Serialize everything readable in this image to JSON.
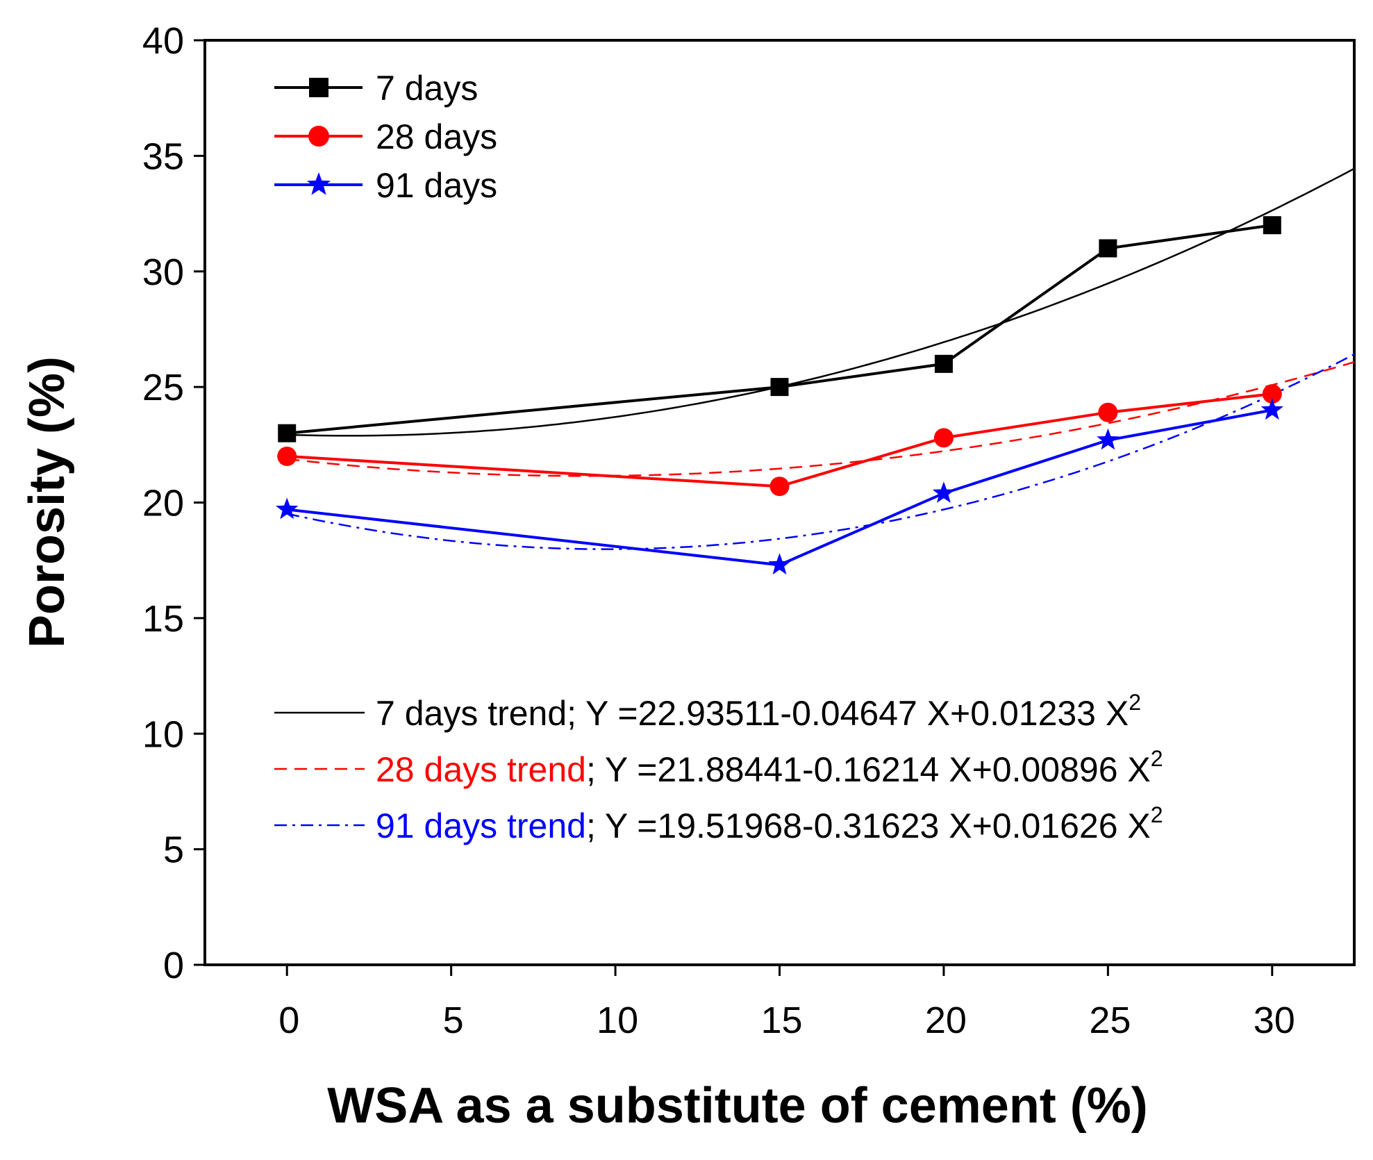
{
  "chart_data": {
    "type": "line",
    "title": "",
    "xlabel": "WSA as a substitute of cement  (%)",
    "ylabel": "Porosity (%)",
    "xlim": [
      -2.5,
      32.5
    ],
    "ylim": [
      0,
      40
    ],
    "x_ticks": [
      "0",
      "5",
      "10",
      "15",
      "20",
      "25",
      "30"
    ],
    "y_ticks": [
      "0",
      "5",
      "10",
      "15",
      "20",
      "25",
      "30",
      "35",
      "40"
    ],
    "grid": false,
    "legend_position": "top-left",
    "series": [
      {
        "name": "7 days",
        "color": "#000000",
        "marker": "square",
        "x": [
          0,
          15,
          20,
          25,
          30
        ],
        "y": [
          23.0,
          25.0,
          26.0,
          31.0,
          32.0
        ]
      },
      {
        "name": "28 days",
        "color": "#ff0000",
        "marker": "circle",
        "x": [
          0,
          15,
          20,
          25,
          30
        ],
        "y": [
          22.0,
          20.7,
          22.8,
          23.9,
          24.7
        ]
      },
      {
        "name": "91 days",
        "color": "#0000ff",
        "marker": "star",
        "x": [
          0,
          15,
          20,
          25,
          30
        ],
        "y": [
          19.7,
          17.3,
          20.4,
          22.7,
          24.0
        ]
      }
    ],
    "trends": [
      {
        "name": "7 days trend",
        "color": "#000000",
        "style": "solid",
        "a": 22.93511,
        "b": -0.04647,
        "c": 0.01233,
        "equation": "; Y =22.93511-0.04647 X+0.01233 X",
        "sup": "2"
      },
      {
        "name": "28 days trend",
        "color": "#ff0000",
        "style": "dashed",
        "a": 21.88441,
        "b": -0.16214,
        "c": 0.00896,
        "equation": "; Y =21.88441-0.16214 X+0.00896 X",
        "sup": "2"
      },
      {
        "name": "91 days trend",
        "color": "#0000ff",
        "style": "dashdot",
        "a": 19.51968,
        "b": -0.31623,
        "c": 0.01626,
        "equation": "; Y =19.51968-0.31623 X+0.01626 X",
        "sup": "2"
      }
    ]
  }
}
